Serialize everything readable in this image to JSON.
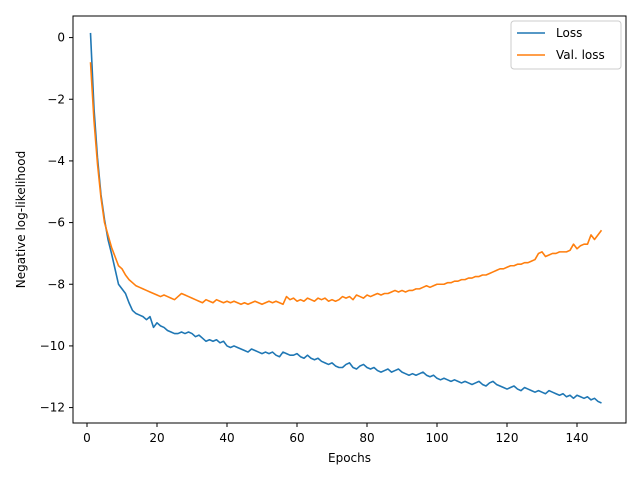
{
  "chart_data": {
    "type": "line",
    "xlabel": "Epochs",
    "ylabel": "Negative log-likelihood",
    "xlim": [
      -4,
      154
    ],
    "ylim": [
      -12.5,
      0.7
    ],
    "xticks": [
      0,
      20,
      40,
      60,
      80,
      100,
      120,
      140
    ],
    "yticks": [
      0,
      -2,
      -4,
      -6,
      -8,
      -10,
      -12
    ],
    "grid": false,
    "legend_position": "top-right",
    "series": [
      {
        "name": "Loss",
        "color": "#1f77b4",
        "x": [
          1,
          2,
          3,
          4,
          5,
          6,
          7,
          8,
          9,
          10,
          11,
          12,
          13,
          14,
          15,
          16,
          17,
          18,
          19,
          20,
          21,
          22,
          23,
          24,
          25,
          26,
          27,
          28,
          29,
          30,
          31,
          32,
          33,
          34,
          35,
          36,
          37,
          38,
          39,
          40,
          41,
          42,
          43,
          44,
          45,
          46,
          47,
          48,
          49,
          50,
          51,
          52,
          53,
          54,
          55,
          56,
          57,
          58,
          59,
          60,
          61,
          62,
          63,
          64,
          65,
          66,
          67,
          68,
          69,
          70,
          71,
          72,
          73,
          74,
          75,
          76,
          77,
          78,
          79,
          80,
          81,
          82,
          83,
          84,
          85,
          86,
          87,
          88,
          89,
          90,
          91,
          92,
          93,
          94,
          95,
          96,
          97,
          98,
          99,
          100,
          101,
          102,
          103,
          104,
          105,
          106,
          107,
          108,
          109,
          110,
          111,
          112,
          113,
          114,
          115,
          116,
          117,
          118,
          119,
          120,
          121,
          122,
          123,
          124,
          125,
          126,
          127,
          128,
          129,
          130,
          131,
          132,
          133,
          134,
          135,
          136,
          137,
          138,
          139,
          140,
          141,
          142,
          143,
          144,
          145,
          146,
          147
        ],
        "values": [
          0.15,
          -2.3,
          -3.9,
          -5.1,
          -5.9,
          -6.55,
          -7.0,
          -7.5,
          -8.0,
          -8.15,
          -8.3,
          -8.6,
          -8.85,
          -8.95,
          -9.0,
          -9.05,
          -9.15,
          -9.05,
          -9.4,
          -9.25,
          -9.35,
          -9.4,
          -9.5,
          -9.55,
          -9.6,
          -9.6,
          -9.55,
          -9.6,
          -9.55,
          -9.6,
          -9.7,
          -9.65,
          -9.75,
          -9.85,
          -9.8,
          -9.85,
          -9.8,
          -9.9,
          -9.85,
          -10.0,
          -10.05,
          -10.0,
          -10.05,
          -10.1,
          -10.15,
          -10.2,
          -10.1,
          -10.15,
          -10.2,
          -10.25,
          -10.2,
          -10.25,
          -10.2,
          -10.3,
          -10.35,
          -10.2,
          -10.25,
          -10.3,
          -10.3,
          -10.25,
          -10.35,
          -10.4,
          -10.3,
          -10.4,
          -10.45,
          -10.4,
          -10.5,
          -10.55,
          -10.6,
          -10.55,
          -10.65,
          -10.7,
          -10.7,
          -10.6,
          -10.55,
          -10.7,
          -10.75,
          -10.65,
          -10.6,
          -10.7,
          -10.75,
          -10.7,
          -10.8,
          -10.85,
          -10.8,
          -10.75,
          -10.85,
          -10.8,
          -10.75,
          -10.85,
          -10.9,
          -10.95,
          -10.9,
          -10.95,
          -10.9,
          -10.85,
          -10.95,
          -11.0,
          -10.95,
          -11.05,
          -11.1,
          -11.05,
          -11.1,
          -11.15,
          -11.1,
          -11.15,
          -11.2,
          -11.15,
          -11.2,
          -11.25,
          -11.2,
          -11.15,
          -11.25,
          -11.3,
          -11.2,
          -11.15,
          -11.25,
          -11.3,
          -11.35,
          -11.4,
          -11.35,
          -11.3,
          -11.4,
          -11.45,
          -11.35,
          -11.4,
          -11.45,
          -11.5,
          -11.45,
          -11.5,
          -11.55,
          -11.45,
          -11.5,
          -11.55,
          -11.6,
          -11.55,
          -11.65,
          -11.6,
          -11.7,
          -11.6,
          -11.65,
          -11.7,
          -11.65,
          -11.75,
          -11.7,
          -11.8,
          -11.85
        ]
      },
      {
        "name": "Val. loss",
        "color": "#ff7f0e",
        "x": [
          1,
          2,
          3,
          4,
          5,
          6,
          7,
          8,
          9,
          10,
          11,
          12,
          13,
          14,
          15,
          16,
          17,
          18,
          19,
          20,
          21,
          22,
          23,
          24,
          25,
          26,
          27,
          28,
          29,
          30,
          31,
          32,
          33,
          34,
          35,
          36,
          37,
          38,
          39,
          40,
          41,
          42,
          43,
          44,
          45,
          46,
          47,
          48,
          49,
          50,
          51,
          52,
          53,
          54,
          55,
          56,
          57,
          58,
          59,
          60,
          61,
          62,
          63,
          64,
          65,
          66,
          67,
          68,
          69,
          70,
          71,
          72,
          73,
          74,
          75,
          76,
          77,
          78,
          79,
          80,
          81,
          82,
          83,
          84,
          85,
          86,
          87,
          88,
          89,
          90,
          91,
          92,
          93,
          94,
          95,
          96,
          97,
          98,
          99,
          100,
          101,
          102,
          103,
          104,
          105,
          106,
          107,
          108,
          109,
          110,
          111,
          112,
          113,
          114,
          115,
          116,
          117,
          118,
          119,
          120,
          121,
          122,
          123,
          124,
          125,
          126,
          127,
          128,
          129,
          130,
          131,
          132,
          133,
          134,
          135,
          136,
          137,
          138,
          139,
          140,
          141,
          142,
          143,
          144,
          145,
          146,
          147
        ],
        "values": [
          -0.8,
          -2.7,
          -4.1,
          -5.2,
          -6.0,
          -6.4,
          -6.8,
          -7.1,
          -7.4,
          -7.5,
          -7.7,
          -7.85,
          -7.95,
          -8.05,
          -8.1,
          -8.15,
          -8.2,
          -8.25,
          -8.3,
          -8.35,
          -8.4,
          -8.35,
          -8.4,
          -8.45,
          -8.5,
          -8.4,
          -8.3,
          -8.35,
          -8.4,
          -8.45,
          -8.5,
          -8.55,
          -8.6,
          -8.5,
          -8.55,
          -8.6,
          -8.5,
          -8.55,
          -8.6,
          -8.55,
          -8.6,
          -8.55,
          -8.6,
          -8.65,
          -8.6,
          -8.65,
          -8.6,
          -8.55,
          -8.6,
          -8.65,
          -8.6,
          -8.55,
          -8.6,
          -8.55,
          -8.6,
          -8.65,
          -8.4,
          -8.5,
          -8.45,
          -8.55,
          -8.5,
          -8.55,
          -8.45,
          -8.5,
          -8.55,
          -8.45,
          -8.5,
          -8.45,
          -8.55,
          -8.5,
          -8.55,
          -8.5,
          -8.4,
          -8.45,
          -8.4,
          -8.5,
          -8.35,
          -8.4,
          -8.45,
          -8.35,
          -8.4,
          -8.35,
          -8.3,
          -8.35,
          -8.3,
          -8.3,
          -8.25,
          -8.2,
          -8.25,
          -8.2,
          -8.25,
          -8.2,
          -8.2,
          -8.15,
          -8.15,
          -8.1,
          -8.05,
          -8.1,
          -8.05,
          -8.0,
          -8.0,
          -8.0,
          -7.95,
          -7.95,
          -7.9,
          -7.9,
          -7.85,
          -7.85,
          -7.8,
          -7.8,
          -7.75,
          -7.75,
          -7.7,
          -7.7,
          -7.65,
          -7.6,
          -7.55,
          -7.5,
          -7.5,
          -7.45,
          -7.4,
          -7.4,
          -7.35,
          -7.35,
          -7.3,
          -7.3,
          -7.25,
          -7.2,
          -7.0,
          -6.95,
          -7.1,
          -7.05,
          -7.0,
          -7.0,
          -6.95,
          -6.95,
          -6.95,
          -6.9,
          -6.7,
          -6.85,
          -6.75,
          -6.7,
          -6.7,
          -6.4,
          -6.55,
          -6.4,
          -6.25
        ]
      }
    ]
  }
}
